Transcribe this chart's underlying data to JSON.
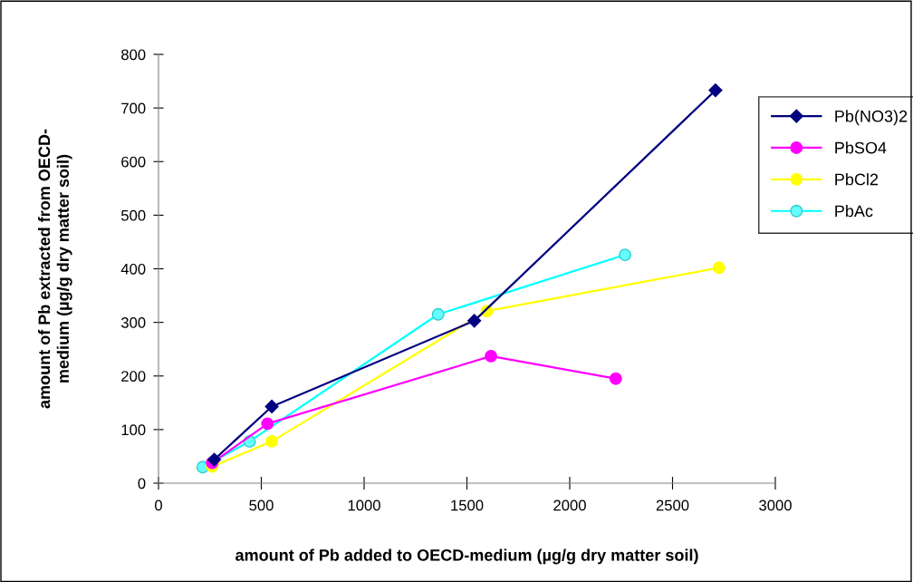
{
  "chart_data": {
    "type": "line",
    "xlabel": "amount of Pb added to OECD-medium (µg/g dry matter soil)",
    "ylabel": "amount of Pb extracted from OECD-medium (µg/g dry matter soil)",
    "xlim": [
      0,
      3000
    ],
    "xticks": [
      0,
      500,
      1000,
      1500,
      2000,
      2500,
      3000
    ],
    "ylim": [
      0,
      800
    ],
    "yticks": [
      0,
      100,
      200,
      300,
      400,
      500,
      600,
      700,
      800
    ],
    "grid": false,
    "legend": "top right",
    "series": [
      {
        "name": "Pb(NO3)2",
        "color": "#000080",
        "marker": "diamond",
        "x": [
          271,
          551,
          1536,
          2709
        ],
        "values": [
          44,
          143,
          303,
          733
        ]
      },
      {
        "name": "PbSO4",
        "color": "#ff00ff",
        "marker": "circle",
        "x": [
          261,
          530,
          1617,
          2224
        ],
        "values": [
          38,
          111,
          237,
          195
        ]
      },
      {
        "name": "PbCl2",
        "color": "#ffff00",
        "marker": "circle",
        "x": [
          261,
          551,
          1597,
          2726
        ],
        "values": [
          31,
          78,
          321,
          402
        ]
      },
      {
        "name": "PbAc",
        "color": "#00ffff",
        "marker": "circle",
        "x": [
          215,
          443,
          1360,
          2269
        ],
        "values": [
          30,
          78,
          315,
          426
        ]
      }
    ]
  }
}
